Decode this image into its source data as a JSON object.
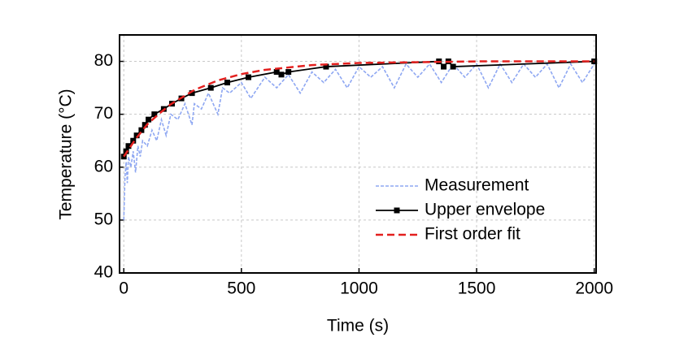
{
  "chart_data": {
    "type": "line",
    "xlabel": "Time (s)",
    "ylabel": "Temperature  (°C)",
    "xlim": [
      -18,
      2008
    ],
    "ylim": [
      40,
      85
    ],
    "xticks": [
      0,
      500,
      1000,
      1500,
      2000
    ],
    "yticks": [
      40,
      50,
      60,
      70,
      80
    ],
    "grid": true,
    "legend": "lower right",
    "series": [
      {
        "name": "Measurement",
        "color": "#8ea7f2",
        "style": "dashed",
        "x": [
          0,
          5,
          10,
          15,
          20,
          30,
          40,
          50,
          60,
          70,
          80,
          100,
          120,
          140,
          160,
          180,
          200,
          230,
          260,
          290,
          300,
          330,
          360,
          400,
          420,
          450,
          500,
          540,
          600,
          650,
          700,
          750,
          800,
          850,
          900,
          950,
          1000,
          1050,
          1100,
          1150,
          1200,
          1250,
          1300,
          1350,
          1400,
          1450,
          1500,
          1550,
          1600,
          1650,
          1700,
          1750,
          1800,
          1850,
          1900,
          1950,
          2000
        ],
        "values": [
          50,
          58,
          61,
          57,
          62,
          60,
          63,
          59,
          64,
          62,
          65,
          64,
          67,
          65,
          69,
          66,
          70,
          69,
          72,
          68,
          72,
          71,
          74,
          70,
          75,
          74,
          76,
          73,
          77,
          75,
          77.5,
          74,
          78,
          76,
          78.5,
          75,
          79,
          77,
          79,
          75,
          79.5,
          77,
          79.5,
          76,
          79.5,
          77,
          79.5,
          75,
          79.5,
          76,
          79.5,
          77,
          79.5,
          75,
          79.5,
          76,
          79.5
        ]
      },
      {
        "name": "Upper envelope",
        "color": "#000000",
        "style": "solid-marker",
        "x": [
          0,
          10,
          20,
          40,
          55,
          75,
          90,
          105,
          130,
          170,
          205,
          245,
          290,
          370,
          440,
          530,
          650,
          670,
          700,
          860,
          1340,
          1360,
          1380,
          1400,
          2000
        ],
        "values": [
          62,
          63,
          64,
          65,
          66,
          67,
          68,
          69,
          70,
          71,
          72,
          73,
          74,
          75,
          76,
          77,
          78,
          77.5,
          78,
          79,
          80,
          79,
          80,
          79,
          80
        ]
      },
      {
        "name": "First order fit",
        "color": "#e3201f",
        "style": "long-dash",
        "x": [
          0,
          50,
          100,
          150,
          200,
          300,
          400,
          500,
          600,
          800,
          1000,
          1500,
          2000
        ],
        "values": [
          62,
          65.3,
          68.1,
          70.1,
          71.9,
          74.6,
          76.4,
          77.6,
          78.4,
          79.3,
          79.7,
          80,
          80
        ]
      }
    ]
  }
}
